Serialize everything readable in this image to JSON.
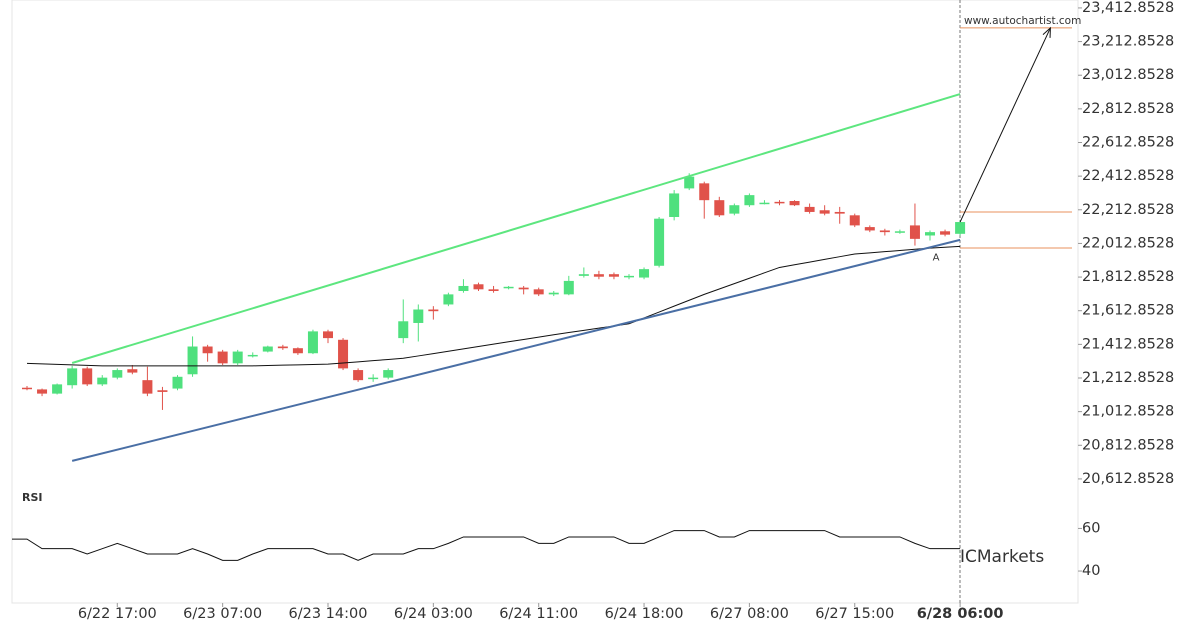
{
  "chart_data": {
    "type": "candlestick",
    "source": "www.autochartist.com",
    "watermark": "ICMarkets",
    "categories": [
      null,
      null,
      null,
      null,
      null,
      null,
      "6/22 17:00",
      null,
      null,
      null,
      null,
      null,
      null,
      "6/23 07:00",
      null,
      null,
      null,
      null,
      null,
      null,
      "6/23 14:00",
      null,
      null,
      null,
      null,
      null,
      null,
      "6/24 03:00",
      null,
      null,
      null,
      null,
      null,
      null,
      "6/24 11:00",
      null,
      null,
      null,
      null,
      null,
      null,
      "6/24 18:00",
      null,
      null,
      null,
      null,
      null,
      null,
      "6/27 08:00",
      null,
      null,
      null,
      null,
      null,
      null,
      "6/27 15:00",
      null,
      null,
      null,
      null,
      null,
      null,
      "6/28 06:00"
    ],
    "open": [
      21155,
      21145,
      21120,
      21170,
      21270,
      21175,
      21215,
      21265,
      21200,
      21140,
      21150,
      21235,
      21400,
      21370,
      21300,
      21345,
      21370,
      21400,
      21390,
      21360,
      21490,
      21440,
      21260,
      21210,
      21215,
      21450,
      21540,
      21620,
      21650,
      21730,
      21770,
      21740,
      21750,
      21750,
      21740,
      21710,
      21710,
      21820,
      21830,
      21830,
      21815,
      21810,
      21880,
      22170,
      22340,
      22370,
      22270,
      22190,
      22240,
      22250,
      22260,
      22265,
      22230,
      22210,
      22200,
      22180,
      22110,
      22090,
      22080,
      22120,
      22060,
      22085,
      22070
    ],
    "high": [
      21165,
      21150,
      21180,
      21285,
      21280,
      21230,
      21270,
      21290,
      21280,
      21160,
      21230,
      21460,
      21410,
      21380,
      21380,
      21365,
      21405,
      21410,
      21395,
      21500,
      21500,
      21450,
      21270,
      21235,
      21270,
      21680,
      21650,
      21640,
      21720,
      21800,
      21780,
      21760,
      21760,
      21760,
      21750,
      21730,
      21820,
      21870,
      21850,
      21840,
      21830,
      21870,
      22170,
      22330,
      22430,
      22380,
      22290,
      22250,
      22310,
      22270,
      22270,
      22270,
      22250,
      22240,
      22230,
      22190,
      22120,
      22100,
      22095,
      22250,
      22090,
      22095,
      22150
    ],
    "low": [
      21140,
      21105,
      21115,
      21150,
      21165,
      21165,
      21205,
      21235,
      21105,
      21023,
      21140,
      21220,
      21310,
      21290,
      21290,
      21335,
      21365,
      21380,
      21350,
      21355,
      21420,
      21260,
      21190,
      21190,
      21205,
      21420,
      21430,
      21560,
      21640,
      21720,
      21730,
      21720,
      21740,
      21710,
      21700,
      21700,
      21705,
      21810,
      21800,
      21800,
      21800,
      21800,
      21870,
      22150,
      22330,
      22160,
      22170,
      22180,
      22230,
      22245,
      22240,
      22235,
      22190,
      22180,
      22130,
      22110,
      22080,
      22060,
      22070,
      22000,
      22030,
      22055,
      22060
    ],
    "close": [
      21150,
      21120,
      21175,
      21270,
      21175,
      21215,
      21260,
      21245,
      21120,
      21130,
      21220,
      21400,
      21360,
      21300,
      21370,
      21350,
      21400,
      21390,
      21360,
      21490,
      21450,
      21270,
      21200,
      21215,
      21260,
      21550,
      21620,
      21610,
      21710,
      21760,
      21740,
      21730,
      21755,
      21740,
      21710,
      21720,
      21790,
      21830,
      21815,
      21815,
      21820,
      21860,
      22160,
      22310,
      22410,
      22270,
      22180,
      22240,
      22300,
      22255,
      22255,
      22240,
      22200,
      22190,
      22190,
      22120,
      22090,
      22080,
      22085,
      22040,
      22080,
      22065,
      22140
    ],
    "up_color": "#4fe07e",
    "down_color": "#e0524a",
    "moving_average": {
      "color": "#111111",
      "values": [
        21300,
        21297,
        21294,
        21291,
        21288,
        21285,
        21285,
        21285,
        21285,
        21285,
        21285,
        21285,
        21285,
        21285,
        21285,
        21285,
        21287,
        21289,
        21291,
        21293,
        21295,
        21302,
        21309,
        21316,
        21323,
        21330,
        21344,
        21358,
        21372,
        21386,
        21400,
        21414,
        21428,
        21442,
        21456,
        21470,
        21483,
        21496,
        21509,
        21522,
        21535,
        21570,
        21605,
        21640,
        21675,
        21710,
        21742,
        21774,
        21806,
        21838,
        21870,
        21886,
        21902,
        21918,
        21934,
        21950,
        21957,
        21964,
        21971,
        21978,
        21985,
        21990,
        21995
      ]
    },
    "channel": {
      "x": [
        3,
        62
      ],
      "upper": [
        21302,
        22901
      ],
      "lower": [
        20720,
        22034
      ],
      "upper_color": "#5de67f",
      "lower_color": "#4a6fa5"
    },
    "levels": [
      23294,
      22200,
      21986
    ],
    "level_color": "#e8925e",
    "forecast": {
      "x": [
        62,
        68
      ],
      "y": [
        22140,
        23294
      ]
    },
    "pattern_point": {
      "text": "A",
      "x": 60.4,
      "y": 21930
    },
    "ylim": [
      20547,
      23460
    ],
    "yticks": [
      {
        "value": 23412.8528,
        "label": "23,412.8528"
      },
      {
        "value": 23212.8528,
        "label": "23,212.8528"
      },
      {
        "value": 23012.8528,
        "label": "23,012.8528"
      },
      {
        "value": 22812.8528,
        "label": "22,812.8528"
      },
      {
        "value": 22612.8528,
        "label": "22,612.8528"
      },
      {
        "value": 22412.8528,
        "label": "22,412.8528"
      },
      {
        "value": 22212.8528,
        "label": "22,212.8528"
      },
      {
        "value": 22012.8528,
        "label": "22,012.8528"
      },
      {
        "value": 21812.8528,
        "label": "21,812.8528"
      },
      {
        "value": 21612.8528,
        "label": "21,612.8528"
      },
      {
        "value": 21412.8528,
        "label": "21,412.8528"
      },
      {
        "value": 21212.8528,
        "label": "21,212.8528"
      },
      {
        "value": 21012.8528,
        "label": "21,012.8528"
      },
      {
        "value": 20812.8528,
        "label": "20,812.8528"
      },
      {
        "value": 20612.8528,
        "label": "20,612.8528"
      }
    ],
    "rsi": {
      "label": "RSI",
      "color": "#111111",
      "ylim": [
        25,
        71
      ],
      "yticks": [
        40,
        60
      ],
      "values": [
        55,
        50.5,
        50.5,
        50.5,
        48,
        50.5,
        53,
        50.5,
        48,
        48,
        48,
        50.5,
        48,
        45,
        45,
        48,
        50.5,
        50.5,
        50.5,
        50.5,
        48,
        48,
        45,
        48,
        48,
        48,
        50.5,
        50.5,
        53,
        56,
        56,
        56,
        56,
        56,
        53,
        53,
        56,
        56,
        56,
        56,
        53,
        53,
        56,
        59,
        59,
        59,
        56,
        56,
        59,
        59,
        59,
        59,
        59,
        59,
        56,
        56,
        56,
        56,
        56,
        53,
        50.5,
        50.5,
        50.5
      ]
    }
  }
}
